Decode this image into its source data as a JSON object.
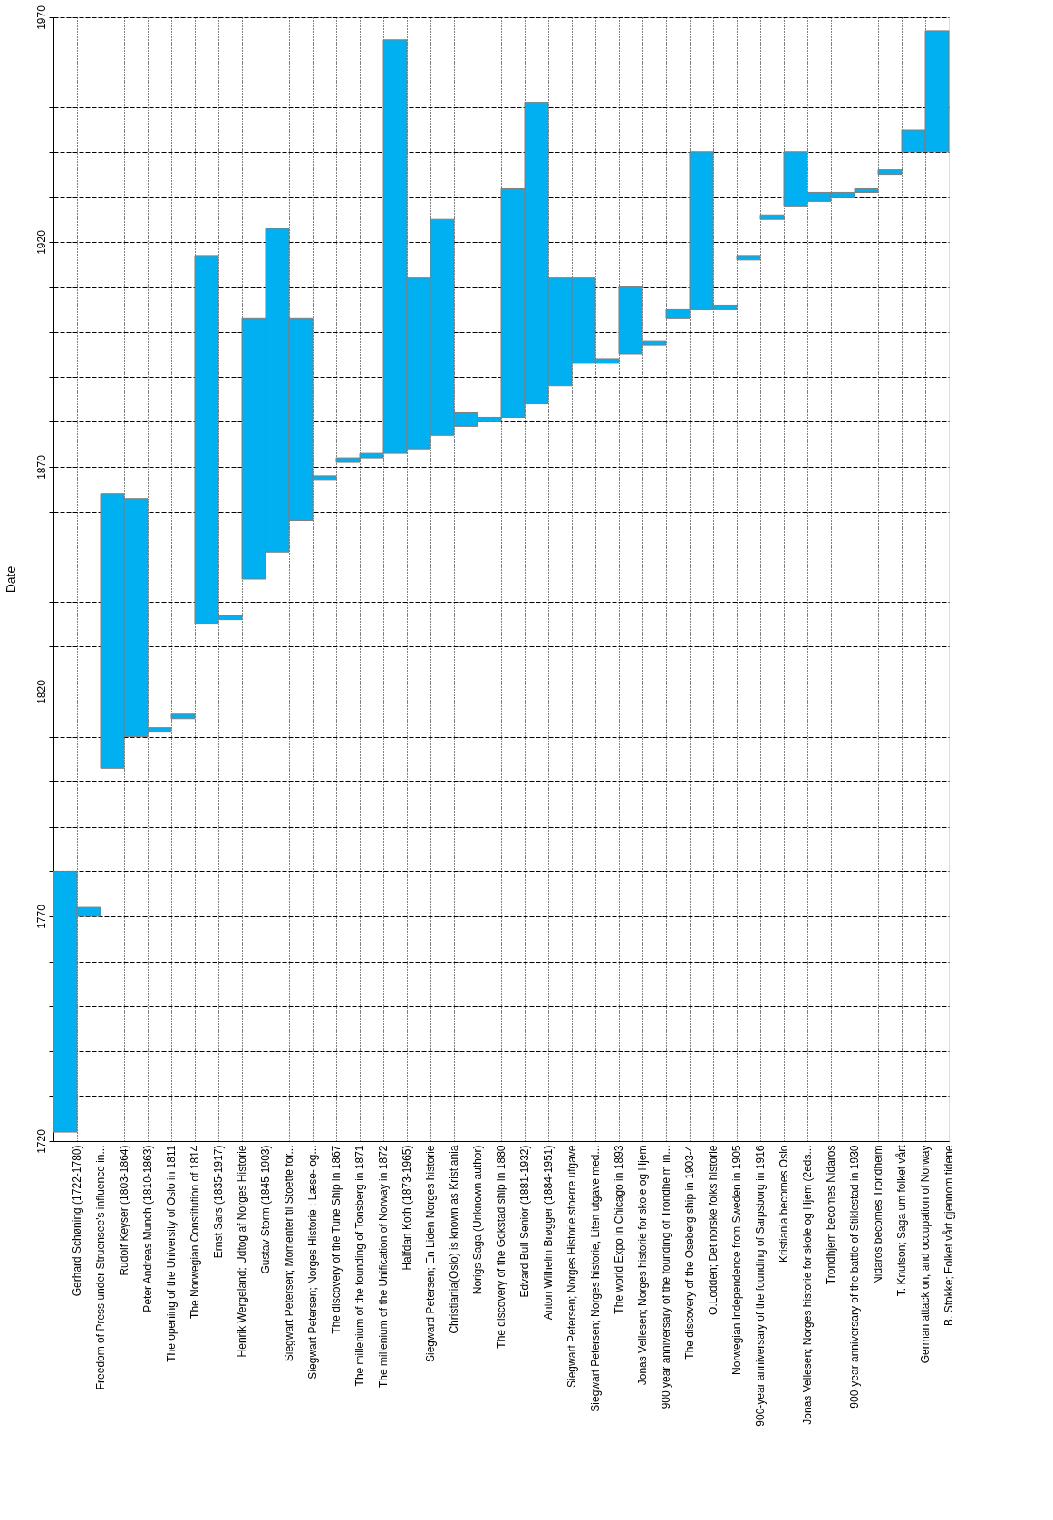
{
  "chart_data": {
    "type": "bar",
    "ylabel": "Date",
    "color": "#00b0f0",
    "grid": true,
    "categories": [
      "Gerhard Schøning (1722-1780)",
      "Freedom of Press under Struensee's influence in...",
      "Rudolf Keyser (1803-1864)",
      "Peter Andreas Munch (1810-1863)",
      "The opening of the University of Oslo in 1811",
      "The Norwegian Constitution of 1814",
      "Ernst Sars (1835-1917)",
      "Henrik Wergeland; Udtog af Norges Historie",
      "Gustav Storm (1845-1903)",
      "Siegwart Petersen; Momenter til Stoette for...",
      "Siegwart Petersen; Norges Historie : Læse- og...",
      "The discovery of the Tune Ship in 1867",
      "The millenium of the founding of Tonsberg in 1871",
      "The millenium of the Unification of Norway in 1872",
      "Halfdan Koth (1873-1965)",
      "Siegward Petersen; En Liden Norges historie",
      "Christiania(Oslo) is known as Kristiania",
      "Norigs Saga (Unknown author)",
      "The discovery of the Gokstad ship in 1880",
      "Edvard Bull Senior (1881-1932)",
      "Anton Wilhelm Brøgger (1884-1951)",
      "Siegwart Petersen; Norges Historie stoerre utgave",
      "Siegwart Petersen; Norges historie, Liten utgave med...",
      "The world Expo in Chicago in 1893",
      "Jonas Vellesen; Norges historie for skole og Hjem",
      "900 year anniversary of the founding of Trondheim in...",
      "The discovery of the Oseberg ship in 1903-4",
      "O.Lodden; Det norske folks historie",
      "Norwegian Independence from Sweden in 1905",
      "900-year anniversary of the founding of Sarpsborg in 1916",
      "Kristiania becomes Oslo",
      "Jonas Vellesen; Norges historie for skole og Hjem (2eds...",
      "Trondhjem becomes Nidaros",
      "900-year anniversary of the battle of Stiklestad in 1930",
      "Nidaros becomes Trondheim",
      "T. Knutson; Saga um folket vårt",
      "German attack on, and occupation of Norway",
      "B. Stokke; Folket vårt gjennom tidene"
    ],
    "base": [
      1722,
      1770,
      1803,
      1810,
      1811,
      1814,
      1835,
      1836,
      1845,
      1851,
      1858,
      1867,
      1871,
      1872,
      1873,
      1874,
      1877,
      1879,
      1880,
      1881,
      1884,
      1888,
      1893,
      1893,
      1895,
      1897,
      1903,
      1905,
      1905,
      1916,
      1925,
      1928,
      1929,
      1930,
      1931,
      1935,
      1940,
      1940
    ],
    "values": [
      58,
      2,
      61,
      53,
      1,
      1,
      82,
      1,
      58,
      72,
      45,
      1,
      1,
      1,
      92,
      38,
      48,
      3,
      1,
      51,
      67,
      24,
      19,
      1,
      15,
      1,
      2,
      35,
      1,
      1,
      1,
      12,
      2,
      1,
      1,
      1,
      5,
      27
    ],
    "ylim": [
      1720,
      1970
    ],
    "yticks": [
      1720,
      {
        "value": 1730,
        "label": null
      },
      {
        "value": 1740,
        "label": null
      },
      {
        "value": 1750,
        "label": null
      },
      {
        "value": 1760,
        "label": null
      },
      1770,
      {
        "value": 1780,
        "label": null
      },
      {
        "value": 1790,
        "label": null
      },
      {
        "value": 1800,
        "label": null
      },
      {
        "value": 1810,
        "label": null
      },
      1820,
      {
        "value": 1830,
        "label": null
      },
      {
        "value": 1840,
        "label": null
      },
      {
        "value": 1850,
        "label": null
      },
      {
        "value": 1860,
        "label": null
      },
      1870,
      {
        "value": 1880,
        "label": null
      },
      {
        "value": 1890,
        "label": null
      },
      {
        "value": 1900,
        "label": null
      },
      {
        "value": 1910,
        "label": null
      },
      1920,
      {
        "value": 1930,
        "label": null
      },
      {
        "value": 1940,
        "label": null
      },
      {
        "value": 1950,
        "label": null
      },
      {
        "value": 1960,
        "label": null
      },
      1970
    ]
  }
}
